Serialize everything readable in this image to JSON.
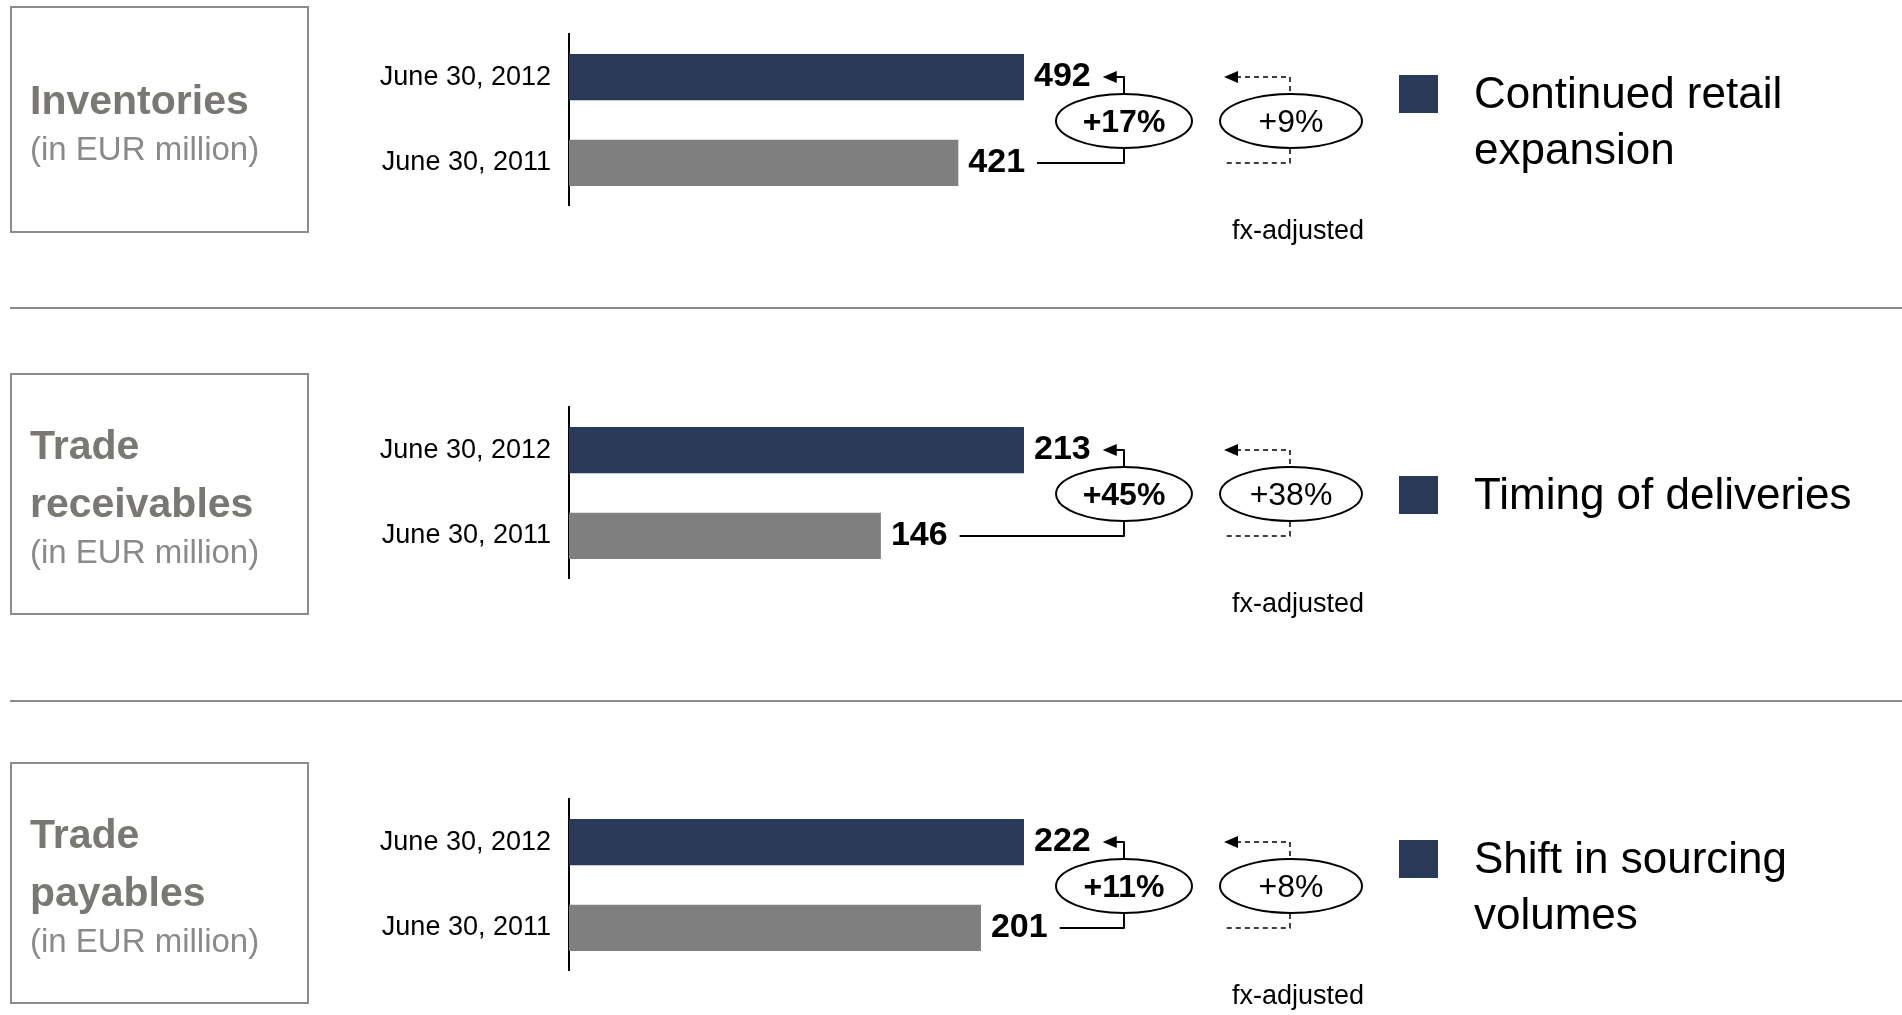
{
  "chart_data": [
    {
      "type": "bar",
      "orientation": "horizontal",
      "title": "Inventories",
      "subtitle": "(in EUR million)",
      "categories": [
        "June 30, 2012",
        "June 30, 2011"
      ],
      "values": [
        492,
        421
      ],
      "colors": [
        "#283a57",
        "#7f7f7f"
      ],
      "data_labels": true,
      "legend": false,
      "tick_labels": "y",
      "annotations": [
        "+17%",
        "+9%",
        "fx-adjusted",
        "Continued retail expansion"
      ]
    },
    {
      "type": "bar",
      "orientation": "horizontal",
      "title": "Trade receivables",
      "subtitle": "(in EUR million)",
      "categories": [
        "June 30, 2012",
        "June 30, 2011"
      ],
      "values": [
        213,
        146
      ],
      "colors": [
        "#283a57",
        "#7f7f7f"
      ],
      "data_labels": true,
      "legend": false,
      "tick_labels": "y",
      "annotations": [
        "+45%",
        "+38%",
        "fx-adjusted",
        "Timing of deliveries"
      ]
    },
    {
      "type": "bar",
      "orientation": "horizontal",
      "title": "Trade payables",
      "subtitle": "(in EUR million)",
      "categories": [
        "June 30, 2012",
        "June 30, 2011"
      ],
      "values": [
        222,
        201
      ],
      "colors": [
        "#283a57",
        "#7f7f7f"
      ],
      "data_labels": true,
      "legend": false,
      "tick_labels": "y",
      "annotations": [
        "+11%",
        "+8%",
        "fx-adjusted",
        "Shift in sourcing volumes"
      ]
    }
  ]
}
